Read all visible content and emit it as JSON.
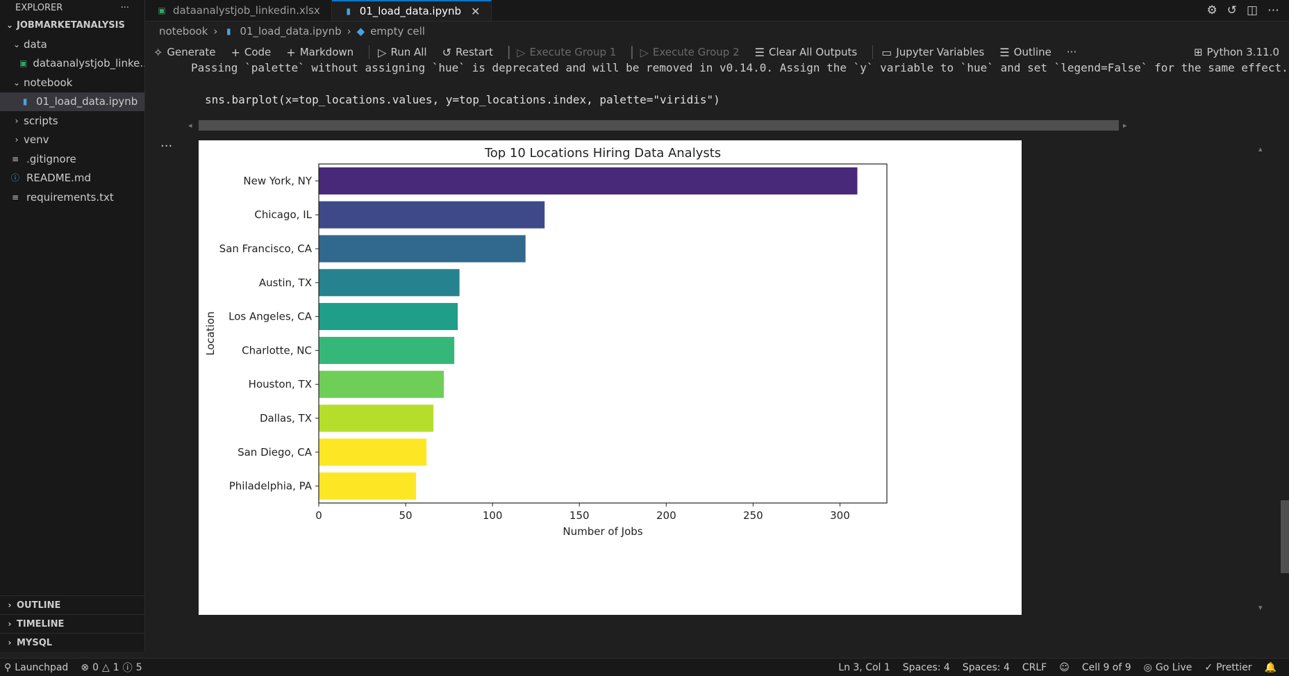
{
  "explorer": {
    "title": "EXPLORER",
    "more": "···",
    "workspace": "JOBMARKETANALYSIS",
    "tree": [
      {
        "label": "data",
        "chevron": "⌄",
        "indent": 0,
        "icon": ""
      },
      {
        "label": "dataanalystjob_linke...",
        "chevron": "",
        "indent": 1,
        "icon": "excel-icon"
      },
      {
        "label": "notebook",
        "chevron": "⌄",
        "indent": 0,
        "icon": ""
      },
      {
        "label": "01_load_data.ipynb",
        "chevron": "",
        "indent": 1,
        "icon": "notebook-icon",
        "selected": true
      },
      {
        "label": "scripts",
        "chevron": "›",
        "indent": 0,
        "icon": ""
      },
      {
        "label": "venv",
        "chevron": "›",
        "indent": 0,
        "icon": ""
      },
      {
        "label": ".gitignore",
        "chevron": "",
        "indent": 0,
        "icon": "lines-icon"
      },
      {
        "label": "README.md",
        "chevron": "",
        "indent": 0,
        "icon": "info-icon"
      },
      {
        "label": "requirements.txt",
        "chevron": "",
        "indent": 0,
        "icon": "lines-icon"
      }
    ],
    "bottom_sections": [
      "OUTLINE",
      "TIMELINE",
      "MYSQL"
    ]
  },
  "tabs": [
    {
      "label": "dataanalystjob_linkedin.xlsx",
      "active": false,
      "icon": "excel-icon"
    },
    {
      "label": "01_load_data.ipynb",
      "active": true,
      "icon": "notebook-icon"
    }
  ],
  "breadcrumb": {
    "folder": "notebook",
    "file": "01_load_data.ipynb",
    "cell": "empty cell"
  },
  "toolbar": {
    "generate": "Generate",
    "code": "Code",
    "markdown": "Markdown",
    "run_all": "Run All",
    "restart": "Restart",
    "execute_group_1": "Execute Group 1",
    "execute_group_2": "Execute Group 2",
    "clear_outputs": "Clear All Outputs",
    "variables": "Jupyter Variables",
    "outline": "Outline",
    "more": "···",
    "kernel": "Python 3.11.0"
  },
  "cell": {
    "warning": "Passing `palette` without assigning `hue` is deprecated and will be removed in v0.14.0. Assign the `y` variable to `hue` and set `legend=False` for the same effect.",
    "code": "sns.barplot(x=top_locations.values, y=top_locations.index, palette=\"viridis\")",
    "dots": "···"
  },
  "chart_data": {
    "type": "bar",
    "orientation": "horizontal",
    "title": "Top 10 Locations Hiring Data Analysts",
    "xlabel": "Number of Jobs",
    "ylabel": "Location",
    "categories": [
      "New York, NY",
      "Chicago, IL",
      "San Francisco, CA",
      "Austin, TX",
      "Los Angeles, CA",
      "Charlotte, NC",
      "Houston, TX",
      "Dallas, TX",
      "San Diego, CA",
      "Philadelphia, PA"
    ],
    "values": [
      310,
      130,
      119,
      81,
      80,
      78,
      72,
      66,
      62,
      56
    ],
    "colors": [
      "#482878",
      "#3e4989",
      "#31688e",
      "#26828e",
      "#1f9e89",
      "#35b779",
      "#6ece58",
      "#b5de2b",
      "#fde725",
      "#fde725"
    ],
    "xlim": [
      0,
      327
    ],
    "xticks": [
      0,
      50,
      100,
      150,
      200,
      250,
      300
    ],
    "palette": "viridis",
    "grid": false,
    "legend": "none"
  },
  "status": {
    "launchpad": "Launchpad",
    "errors": "0",
    "warnings": "1",
    "infos": "5",
    "position": "Ln 3, Col 1",
    "spaces1": "Spaces: 4",
    "spaces2": "Spaces: 4",
    "eol": "CRLF",
    "cell": "Cell 9 of 9",
    "golive": "Go Live",
    "prettier": "Prettier"
  }
}
